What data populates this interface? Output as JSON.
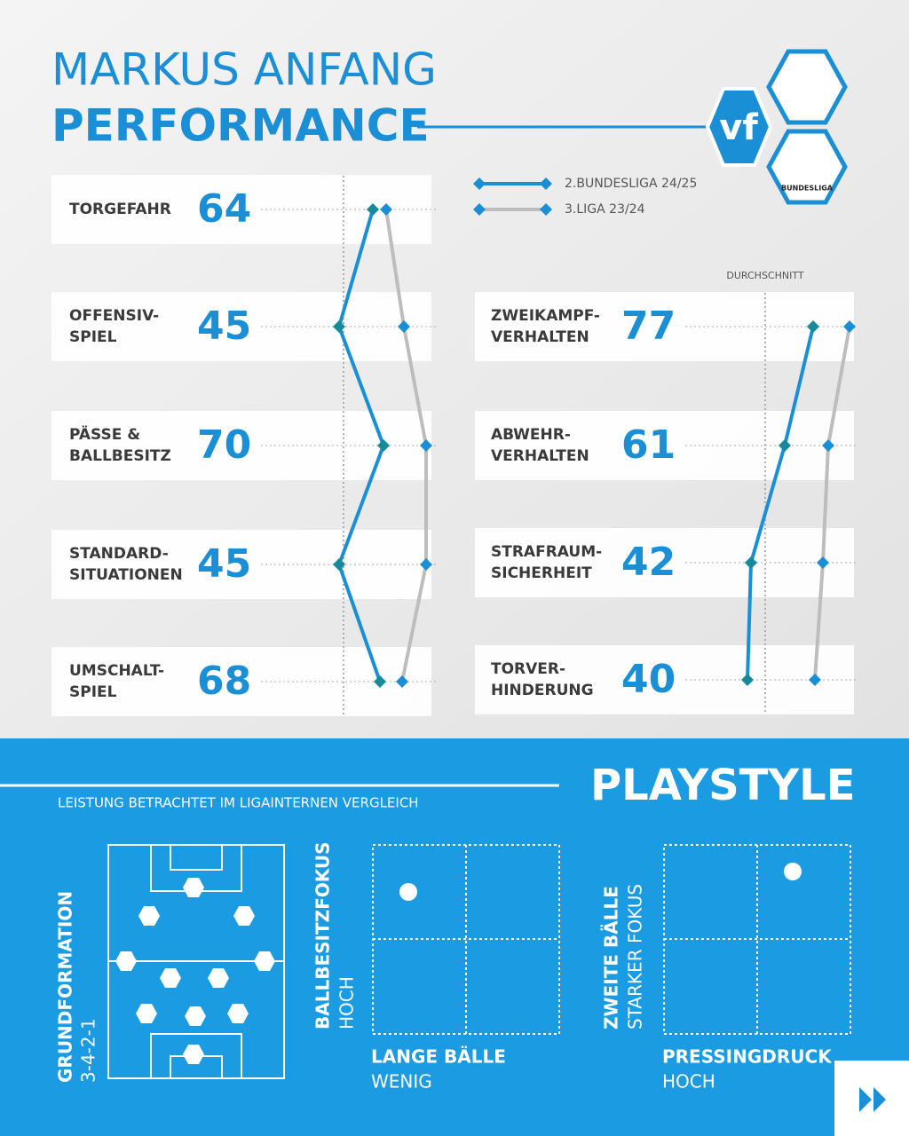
{
  "header": {
    "title_line1": "MARKUS ANFANG",
    "title_line2": "PERFORMANCE"
  },
  "logos": {
    "vf": "vf",
    "league": "BUNDESLIGA"
  },
  "chart_data": {
    "type": "line",
    "legend": [
      {
        "name": "2.BUNDESLIGA 24/25",
        "color": "#1a8fd6"
      },
      {
        "name": "3.LIGA 23/24",
        "color": "#bdbdbd"
      }
    ],
    "average_label": "DURCHSCHNITT",
    "panels": [
      {
        "categories": [
          [
            "TORGEFAHR"
          ],
          [
            "OFFENSIV-",
            "SPIEL"
          ],
          [
            "PÄSSE &",
            "BALLBESITZ"
          ],
          [
            "STANDARD-",
            "SITUATIONEN"
          ],
          [
            "UMSCHALT-",
            "SPIEL"
          ]
        ],
        "series": [
          {
            "values": [
              64,
              45,
              70,
              45,
              68
            ]
          },
          {
            "values": [
              71.5,
              81.5,
              94,
              94,
              80.5
            ]
          }
        ],
        "xlim": [
          40,
          100
        ],
        "average": 47.5
      },
      {
        "categories": [
          [
            "ZWEIKAMPF-",
            "VERHALTEN"
          ],
          [
            "ABWEHR-",
            "VERHALTEN"
          ],
          [
            "STRAFRAUM-",
            "SICHERHEIT"
          ],
          [
            "TORVER-",
            "HINDERUNG"
          ]
        ],
        "series": [
          {
            "values": [
              77,
              61,
              42,
              40
            ]
          },
          {
            "values": [
              97.5,
              85.5,
              82.5,
              78
            ]
          }
        ],
        "xlim": [
          40,
          100
        ],
        "average": 50
      }
    ]
  },
  "playstyle": {
    "title": "PLAYSTYLE",
    "subtitle": "LEISTUNG BETRACHTET IM LIGAINTERNEN VERGLEICH",
    "formation": {
      "label": "GRUNDFORMATION",
      "value": "3-4-2-1"
    },
    "grids": [
      {
        "y_label": "BALLBESITZFOKUS",
        "y_value": "HOCH",
        "x_label": "LANGE BÄLLE",
        "x_value": "WENIG"
      },
      {
        "y_label": "ZWEITE BÄLLE",
        "y_value": "STARKER FOKUS",
        "x_label": "PRESSINGDRUCK",
        "x_value": "HOCH"
      }
    ]
  }
}
